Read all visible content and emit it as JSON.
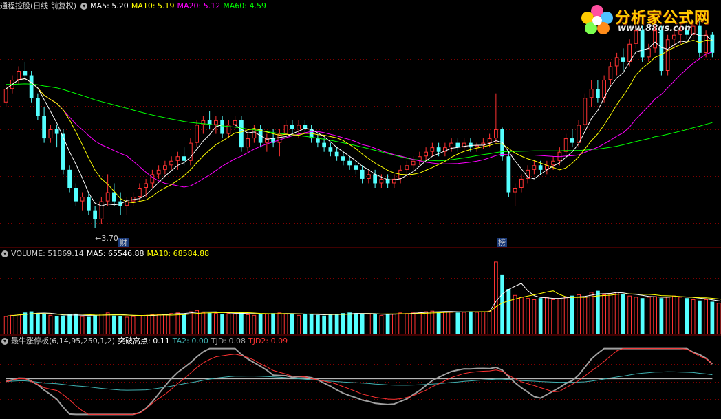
{
  "header": {
    "title": "通程控股(日线 前复权)",
    "ma5": "MA5: 5.20",
    "ma10": "MA10: 5.19",
    "ma20": "MA20: 5.12",
    "ma60": "MA60: 4.59"
  },
  "volume_header": {
    "label": "VOLUME: 51869.14",
    "ma5": "MA5: 65546.88",
    "ma10": "MA10: 68584.88"
  },
  "indicator_header": {
    "label": "最牛涨停板(6,14,95,250,1,2)",
    "tupo": "突破高点: 0.11",
    "ta2": "TA2: 0.00",
    "tjd": "TJD: 0.08",
    "tjd2": "TJD2: 0.09"
  },
  "annotations": {
    "low_price": "3.70",
    "event_cai": "财",
    "event_bang": "榜"
  },
  "logo": {
    "name": "分析家公式网",
    "url": "www.88gs.com"
  },
  "colors": {
    "up": "#ff3232",
    "down": "#54ffff",
    "ma5": "#ffffff",
    "ma10": "#ffff00",
    "ma20": "#ff00ff",
    "ma60": "#00ff00",
    "grid": "#800000",
    "grey_curve": "#a0a0a0",
    "teal_curve": "#40b0b0"
  },
  "chart_data": [
    {
      "type": "candlestick",
      "title": "通程控股(日线 前复权)",
      "ylim": [
        3.5,
        6.1
      ],
      "min_label": 3.7,
      "candles": [
        [
          5.1,
          5.3,
          5.05,
          5.25
        ],
        [
          5.25,
          5.4,
          5.2,
          5.35
        ],
        [
          5.35,
          5.5,
          5.3,
          5.45
        ],
        [
          5.45,
          5.55,
          5.35,
          5.4
        ],
        [
          5.4,
          5.45,
          5.1,
          5.15
        ],
        [
          5.15,
          5.2,
          4.9,
          4.95
        ],
        [
          4.95,
          5.05,
          4.65,
          4.7
        ],
        [
          4.7,
          4.85,
          4.65,
          4.8
        ],
        [
          4.8,
          4.85,
          4.6,
          4.75
        ],
        [
          4.75,
          4.8,
          4.3,
          4.35
        ],
        [
          4.35,
          4.4,
          4.1,
          4.15
        ],
        [
          4.15,
          4.2,
          3.95,
          4.0
        ],
        [
          4.0,
          4.1,
          3.9,
          4.05
        ],
        [
          4.05,
          4.1,
          3.85,
          3.9
        ],
        [
          3.9,
          3.95,
          3.7,
          3.8
        ],
        [
          3.8,
          4.05,
          3.75,
          4.0
        ],
        [
          4.0,
          4.3,
          3.95,
          4.1
        ],
        [
          4.1,
          4.2,
          3.95,
          4.0
        ],
        [
          4.0,
          4.1,
          3.85,
          3.95
        ],
        [
          3.95,
          4.05,
          3.85,
          4.0
        ],
        [
          4.0,
          4.1,
          3.95,
          4.05
        ],
        [
          4.05,
          4.2,
          4.0,
          4.15
        ],
        [
          4.15,
          4.25,
          4.05,
          4.2
        ],
        [
          4.2,
          4.35,
          4.15,
          4.3
        ],
        [
          4.3,
          4.4,
          4.25,
          4.35
        ],
        [
          4.35,
          4.45,
          4.3,
          4.4
        ],
        [
          4.4,
          4.5,
          4.35,
          4.45
        ],
        [
          4.45,
          4.55,
          4.35,
          4.5
        ],
        [
          4.5,
          4.6,
          4.4,
          4.45
        ],
        [
          4.45,
          4.7,
          4.4,
          4.65
        ],
        [
          4.65,
          4.9,
          4.6,
          4.85
        ],
        [
          4.85,
          4.95,
          4.75,
          4.9
        ],
        [
          4.9,
          5.0,
          4.8,
          4.85
        ],
        [
          4.85,
          4.95,
          4.75,
          4.9
        ],
        [
          4.9,
          4.95,
          4.7,
          4.75
        ],
        [
          4.75,
          4.9,
          4.7,
          4.85
        ],
        [
          4.85,
          4.95,
          4.8,
          4.9
        ],
        [
          4.9,
          4.95,
          4.55,
          4.6
        ],
        [
          4.6,
          4.75,
          4.55,
          4.7
        ],
        [
          4.7,
          4.85,
          4.65,
          4.8
        ],
        [
          4.8,
          4.85,
          4.6,
          4.65
        ],
        [
          4.65,
          4.75,
          4.55,
          4.7
        ],
        [
          4.7,
          4.8,
          4.6,
          4.65
        ],
        [
          4.65,
          4.8,
          4.5,
          4.75
        ],
        [
          4.75,
          4.9,
          4.7,
          4.85
        ],
        [
          4.85,
          4.9,
          4.75,
          4.8
        ],
        [
          4.8,
          4.9,
          4.7,
          4.85
        ],
        [
          4.85,
          4.9,
          4.75,
          4.8
        ],
        [
          4.8,
          4.85,
          4.65,
          4.7
        ],
        [
          4.7,
          4.75,
          4.6,
          4.65
        ],
        [
          4.65,
          4.7,
          4.55,
          4.6
        ],
        [
          4.6,
          4.65,
          4.5,
          4.55
        ],
        [
          4.55,
          4.6,
          4.45,
          4.5
        ],
        [
          4.5,
          4.55,
          4.4,
          4.45
        ],
        [
          4.45,
          4.5,
          4.35,
          4.4
        ],
        [
          4.4,
          4.45,
          4.3,
          4.35
        ],
        [
          4.35,
          4.4,
          4.2,
          4.25
        ],
        [
          4.25,
          4.35,
          4.2,
          4.3
        ],
        [
          4.3,
          4.35,
          4.15,
          4.2
        ],
        [
          4.2,
          4.3,
          4.15,
          4.25
        ],
        [
          4.25,
          4.3,
          4.15,
          4.2
        ],
        [
          4.2,
          4.3,
          4.15,
          4.25
        ],
        [
          4.25,
          4.4,
          4.2,
          4.35
        ],
        [
          4.35,
          4.45,
          4.3,
          4.4
        ],
        [
          4.4,
          4.5,
          4.35,
          4.45
        ],
        [
          4.45,
          4.55,
          4.4,
          4.5
        ],
        [
          4.5,
          4.6,
          4.45,
          4.55
        ],
        [
          4.55,
          4.65,
          4.5,
          4.6
        ],
        [
          4.6,
          4.65,
          4.5,
          4.55
        ],
        [
          4.55,
          4.65,
          4.5,
          4.6
        ],
        [
          4.6,
          4.7,
          4.55,
          4.65
        ],
        [
          4.65,
          4.7,
          4.55,
          4.6
        ],
        [
          4.6,
          4.7,
          4.55,
          4.65
        ],
        [
          4.65,
          4.7,
          4.55,
          4.6
        ],
        [
          4.6,
          4.65,
          4.55,
          4.62
        ],
        [
          4.62,
          4.7,
          4.58,
          4.65
        ],
        [
          4.65,
          4.75,
          4.6,
          4.7
        ],
        [
          4.7,
          5.2,
          4.65,
          4.8
        ],
        [
          4.8,
          4.82,
          4.45,
          4.5
        ],
        [
          4.5,
          4.55,
          4.05,
          4.1
        ],
        [
          4.1,
          4.2,
          3.95,
          4.15
        ],
        [
          4.15,
          4.3,
          4.1,
          4.25
        ],
        [
          4.25,
          4.4,
          4.2,
          4.35
        ],
        [
          4.35,
          4.45,
          4.3,
          4.4
        ],
        [
          4.4,
          4.45,
          4.3,
          4.35
        ],
        [
          4.35,
          4.45,
          4.3,
          4.4
        ],
        [
          4.4,
          4.5,
          4.35,
          4.45
        ],
        [
          4.45,
          4.6,
          4.4,
          4.55
        ],
        [
          4.55,
          4.75,
          4.5,
          4.7
        ],
        [
          4.7,
          4.8,
          4.6,
          4.65
        ],
        [
          4.65,
          4.9,
          4.6,
          4.85
        ],
        [
          4.85,
          5.2,
          4.8,
          5.15
        ],
        [
          5.15,
          5.35,
          5.05,
          5.25
        ],
        [
          5.25,
          5.35,
          5.1,
          5.15
        ],
        [
          5.15,
          5.4,
          5.1,
          5.35
        ],
        [
          5.35,
          5.55,
          5.3,
          5.5
        ],
        [
          5.5,
          5.65,
          5.4,
          5.6
        ],
        [
          5.6,
          5.7,
          5.45,
          5.55
        ],
        [
          5.55,
          5.8,
          5.5,
          5.75
        ],
        [
          5.75,
          5.95,
          5.7,
          5.9
        ],
        [
          5.9,
          5.95,
          5.55,
          5.6
        ],
        [
          5.6,
          5.75,
          5.55,
          5.7
        ],
        [
          5.7,
          5.95,
          5.65,
          5.9
        ],
        [
          5.9,
          5.95,
          5.4,
          5.45
        ],
        [
          5.45,
          5.85,
          5.4,
          5.8
        ],
        [
          5.8,
          5.9,
          5.7,
          5.85
        ],
        [
          5.85,
          5.95,
          5.75,
          5.9
        ],
        [
          5.9,
          6.0,
          5.8,
          5.85
        ],
        [
          5.85,
          6.0,
          5.8,
          5.95
        ],
        [
          5.95,
          6.0,
          5.6,
          5.65
        ],
        [
          5.65,
          5.9,
          5.6,
          5.85
        ],
        [
          5.85,
          5.88,
          5.6,
          5.65
        ]
      ]
    },
    {
      "type": "bar",
      "title": "VOLUME",
      "values": [
        30,
        32,
        34,
        36,
        38,
        35,
        33,
        32,
        30,
        31,
        33,
        34,
        30,
        29,
        32,
        34,
        36,
        31,
        30,
        29,
        30,
        31,
        32,
        33,
        33,
        34,
        35,
        36,
        34,
        38,
        40,
        37,
        36,
        35,
        34,
        35,
        34,
        36,
        33,
        32,
        33,
        34,
        35,
        36,
        34,
        33,
        32,
        33,
        34,
        32,
        31,
        33,
        34,
        35,
        36,
        35,
        33,
        34,
        33,
        32,
        33,
        34,
        36,
        35,
        36,
        37,
        38,
        39,
        37,
        38,
        37,
        36,
        37,
        38,
        37,
        38,
        39,
        120,
        99,
        75,
        65,
        62,
        60,
        58,
        60,
        62,
        58,
        60,
        62,
        64,
        66,
        62,
        70,
        72,
        66,
        68,
        70,
        66,
        64,
        62,
        60,
        62,
        63,
        60,
        62,
        64,
        62,
        60,
        58,
        56,
        58,
        54,
        52,
        50
      ],
      "ylim": [
        0,
        125
      ]
    },
    {
      "type": "line",
      "title": "最牛涨停板(6,14,95,250,1,2)",
      "ylim": [
        -1,
        1
      ]
    }
  ]
}
